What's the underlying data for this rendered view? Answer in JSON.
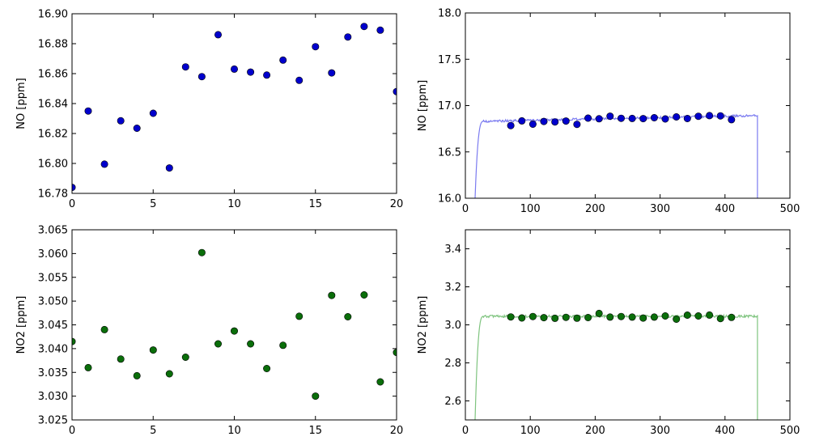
{
  "chart_data": [
    {
      "id": "no-scatter",
      "type": "scatter",
      "xlabel": "",
      "ylabel": "NO [ppm]",
      "xlim": [
        0,
        20
      ],
      "ylim": [
        16.78,
        16.9
      ],
      "xticks": [
        0,
        5,
        10,
        15,
        20
      ],
      "xtick_labels": [
        "0",
        "5",
        "10",
        "15",
        "20"
      ],
      "yticks": [
        16.78,
        16.8,
        16.82,
        16.84,
        16.86,
        16.88,
        16.9
      ],
      "ytick_labels": [
        "16.78",
        "16.80",
        "16.82",
        "16.84",
        "16.86",
        "16.88",
        "16.90"
      ],
      "color": "#0000cc",
      "x": [
        0,
        1,
        2,
        3,
        4,
        5,
        6,
        7,
        8,
        9,
        10,
        11,
        12,
        13,
        14,
        15,
        16,
        17,
        18,
        19,
        20
      ],
      "y": [
        16.784,
        16.835,
        16.7995,
        16.8285,
        16.8235,
        16.8335,
        16.797,
        16.8645,
        16.858,
        16.886,
        16.863,
        16.861,
        16.859,
        16.869,
        16.8555,
        16.878,
        16.8605,
        16.8845,
        16.8915,
        16.889,
        16.848
      ]
    },
    {
      "id": "no-timeseries",
      "type": "line",
      "xlabel": "",
      "ylabel": "NO [ppm]",
      "xlim": [
        0,
        500
      ],
      "ylim": [
        16.0,
        18.0
      ],
      "xticks": [
        0,
        100,
        200,
        300,
        400,
        500
      ],
      "xtick_labels": [
        "0",
        "100",
        "200",
        "300",
        "400",
        "500"
      ],
      "yticks": [
        16.0,
        16.5,
        17.0,
        17.5,
        18.0
      ],
      "ytick_labels": [
        "16.0",
        "16.5",
        "17.0",
        "17.5",
        "18.0"
      ],
      "line_color": "#7b7bf0",
      "marker_color": "#0000cc",
      "line": {
        "start": 15,
        "end": 450,
        "rise_end": 28,
        "base": 16.83,
        "slope": 0.00015,
        "noise": 0.012
      },
      "markers": {
        "x": [
          70,
          87,
          104,
          121,
          138,
          155,
          172,
          189,
          206,
          223,
          240,
          257,
          274,
          291,
          308,
          325,
          342,
          359,
          376,
          393,
          410
        ],
        "y": [
          16.784,
          16.835,
          16.7995,
          16.8285,
          16.8235,
          16.8335,
          16.797,
          16.8645,
          16.858,
          16.886,
          16.863,
          16.861,
          16.859,
          16.869,
          16.8555,
          16.878,
          16.8605,
          16.8845,
          16.8915,
          16.889,
          16.848
        ]
      }
    },
    {
      "id": "no2-scatter",
      "type": "scatter",
      "xlabel": "",
      "ylabel": "NO2 [ppm]",
      "xlim": [
        0,
        20
      ],
      "ylim": [
        3.025,
        3.065
      ],
      "xticks": [
        0,
        5,
        10,
        15,
        20
      ],
      "xtick_labels": [
        "0",
        "5",
        "10",
        "15",
        "20"
      ],
      "yticks": [
        3.025,
        3.03,
        3.035,
        3.04,
        3.045,
        3.05,
        3.055,
        3.06,
        3.065
      ],
      "ytick_labels": [
        "3.025",
        "3.030",
        "3.035",
        "3.040",
        "3.045",
        "3.050",
        "3.055",
        "3.060",
        "3.065"
      ],
      "color": "#0a6e0a",
      "x": [
        0,
        1,
        2,
        3,
        4,
        5,
        6,
        7,
        8,
        9,
        10,
        11,
        12,
        13,
        14,
        15,
        16,
        17,
        18,
        19,
        20
      ],
      "y": [
        3.0415,
        3.036,
        3.044,
        3.0378,
        3.0343,
        3.0397,
        3.0347,
        3.0382,
        3.0602,
        3.041,
        3.0437,
        3.041,
        3.0358,
        3.0407,
        3.0468,
        3.03,
        3.0512,
        3.0467,
        3.0513,
        3.033,
        3.0392
      ]
    },
    {
      "id": "no2-timeseries",
      "type": "line",
      "xlabel": "",
      "ylabel": "NO2 [ppm]",
      "xlim": [
        0,
        500
      ],
      "ylim": [
        2.5,
        3.5
      ],
      "xticks": [
        0,
        100,
        200,
        300,
        400,
        500
      ],
      "xtick_labels": [
        "0",
        "100",
        "200",
        "300",
        "400",
        "500"
      ],
      "yticks": [
        2.6,
        2.8,
        3.0,
        3.2,
        3.4
      ],
      "ytick_labels": [
        "2.6",
        "2.8",
        "3.0",
        "3.2",
        "3.4"
      ],
      "line_color": "#7fc47f",
      "marker_color": "#0a6e0a",
      "line": {
        "start": 15,
        "end": 450,
        "rise_end": 28,
        "base": 3.045,
        "slope": 0.0,
        "noise": 0.006
      },
      "markers": {
        "x": [
          70,
          87,
          104,
          121,
          138,
          155,
          172,
          189,
          206,
          223,
          240,
          257,
          274,
          291,
          308,
          325,
          342,
          359,
          376,
          393,
          410
        ],
        "y": [
          3.0415,
          3.036,
          3.044,
          3.0378,
          3.0343,
          3.0397,
          3.0347,
          3.0382,
          3.0602,
          3.041,
          3.0437,
          3.041,
          3.0358,
          3.0407,
          3.0468,
          3.03,
          3.0512,
          3.0467,
          3.0513,
          3.033,
          3.0392
        ]
      }
    }
  ]
}
